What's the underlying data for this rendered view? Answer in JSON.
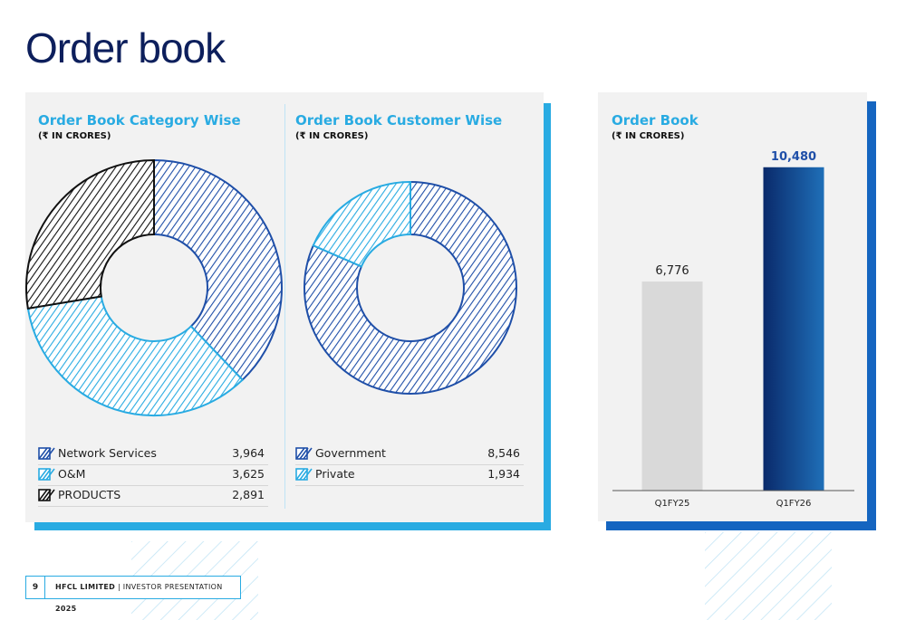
{
  "page": {
    "title": "Order book",
    "page_number": "9"
  },
  "footer": {
    "company": "HFCL LIMITED",
    "separator": "|",
    "doc": "INVESTOR PRESENTATION",
    "year": "2025"
  },
  "colors": {
    "network_services": "#1f4fa8",
    "om": "#29abe2",
    "products": "#111111",
    "government": "#1f4fa8",
    "private": "#29abe2",
    "q1fy25_bar": "#d9d9d9",
    "q1fy26_bar_from": "#0a2a6b",
    "q1fy26_bar_to": "#1f6fb8"
  },
  "chart_data": [
    {
      "type": "pie",
      "title": "Order Book Category Wise",
      "subtitle": "(₹ IN CRORES)",
      "categories": [
        "Network Services",
        "O&M",
        "PRODUCTS"
      ],
      "values": [
        3964,
        3625,
        2891
      ],
      "value_labels": [
        "3,964",
        "3,625",
        "2,891"
      ],
      "donut": true,
      "legend": "bottom"
    },
    {
      "type": "pie",
      "title": "Order Book Customer Wise",
      "subtitle": "(₹ IN CRORES)",
      "categories": [
        "Government",
        "Private"
      ],
      "values": [
        8546,
        1934
      ],
      "value_labels": [
        "8,546",
        "1,934"
      ],
      "donut": true,
      "legend": "bottom"
    },
    {
      "type": "bar",
      "title": "Order Book",
      "subtitle": "(₹ IN CRORES)",
      "categories": [
        "Q1FY25",
        "Q1FY26"
      ],
      "values": [
        6776,
        10480
      ],
      "value_labels": [
        "6,776",
        "10,480"
      ],
      "ylim": [
        0,
        11500
      ],
      "grid": false
    }
  ]
}
